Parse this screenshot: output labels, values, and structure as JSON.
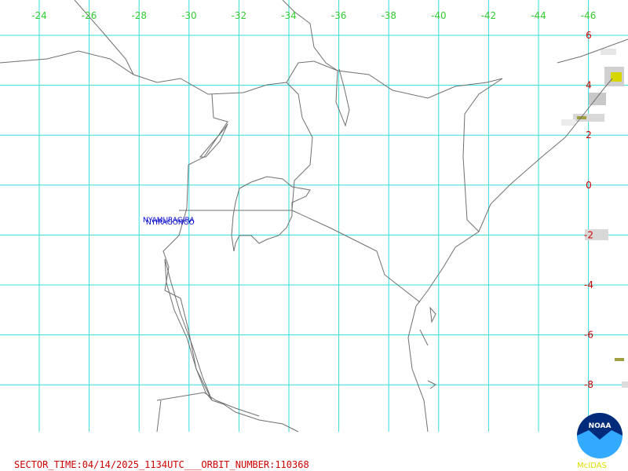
{
  "map": {
    "longitude_ticks": [
      -24,
      -26,
      -28,
      -30,
      -32,
      -34,
      -36,
      -38,
      -40,
      -42,
      -44,
      -46
    ],
    "latitude_ticks": [
      6,
      4,
      2,
      0,
      -2,
      -4,
      -6,
      -8
    ],
    "places": [
      "NYAMURAGIRA",
      "NYIRAGONGO"
    ],
    "footer": "SECTOR_TIME:04/14/2025_1134UTC___ORBIT_NUMBER:110368",
    "logo": {
      "name": "NOAA",
      "caption": "McIDAS"
    }
  }
}
